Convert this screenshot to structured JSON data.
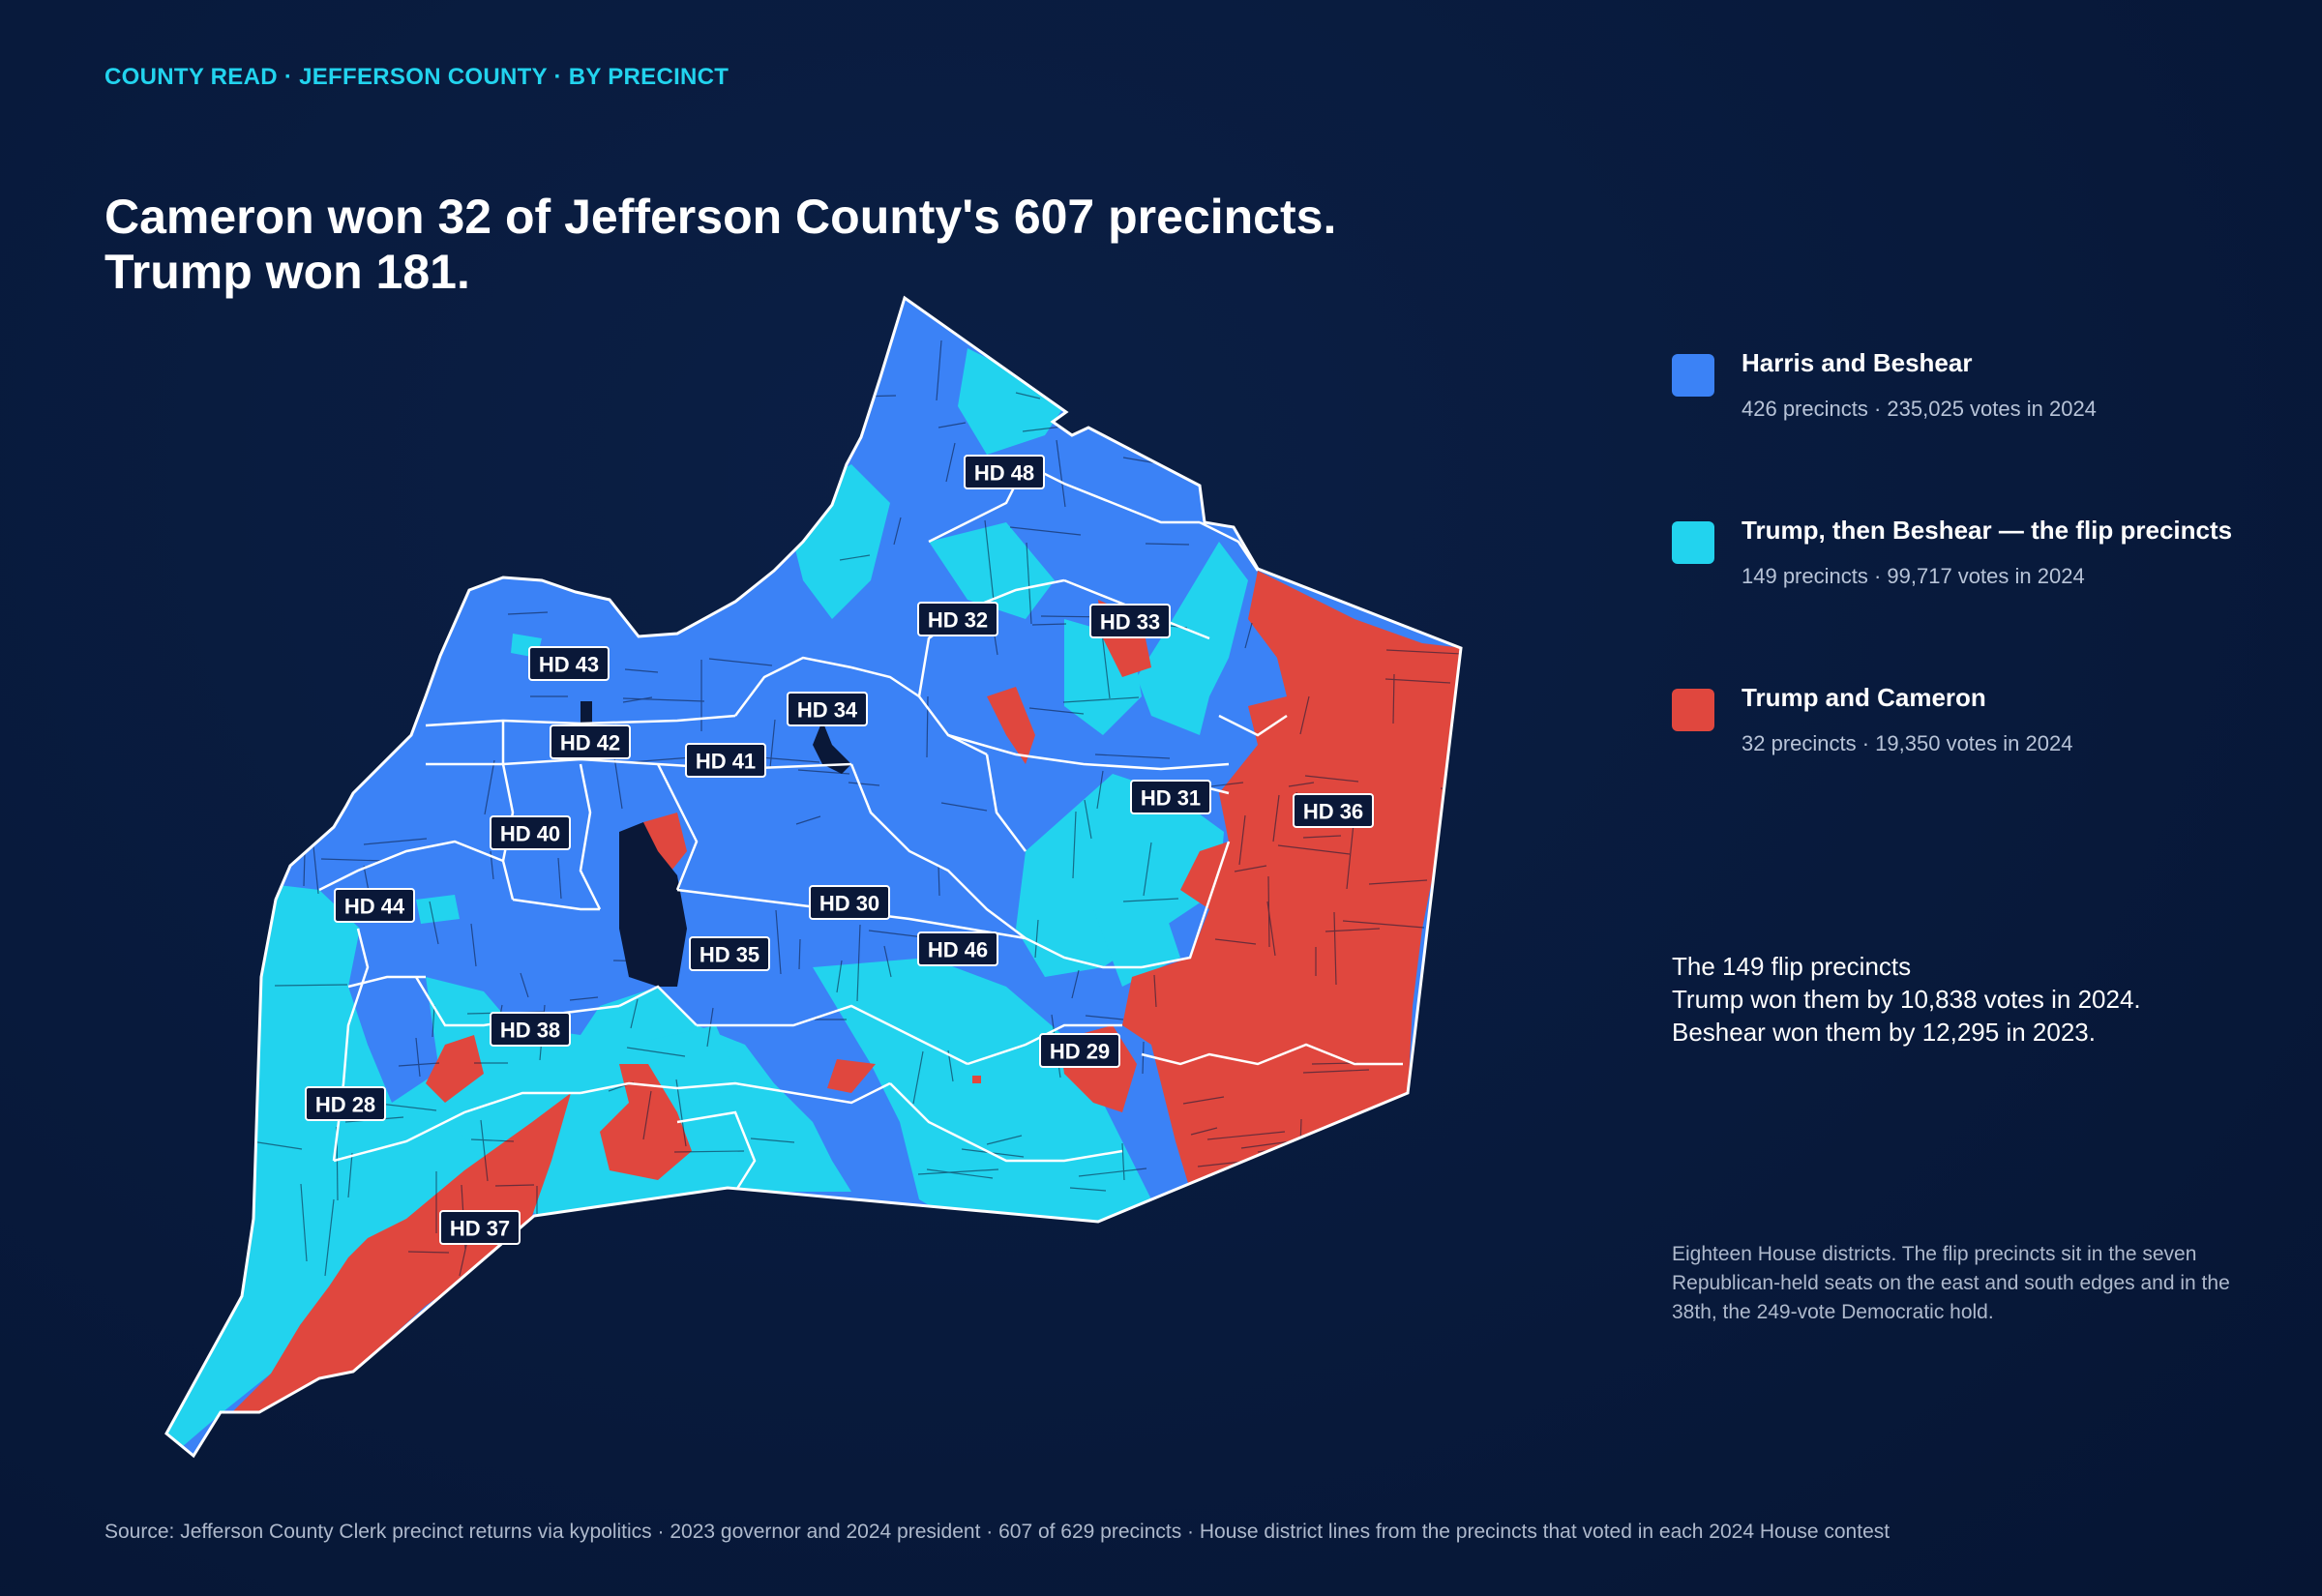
{
  "kicker": "COUNTY READ · JEFFERSON COUNTY · BY PRECINCT",
  "headline": {
    "line1": "Cameron won 32 of Jefferson County's 607 precincts.",
    "line2": "Trump won 181."
  },
  "colors": {
    "background": "#081a3c",
    "harris_beshear": "#3b82f6",
    "flip": "#22d3ee",
    "trump_cameron": "#e0473e",
    "outside": "#0a1838",
    "kicker": "#22d3ee"
  },
  "legend": [
    {
      "key": "harris_beshear",
      "title": "Harris and Beshear",
      "detail": "426 precincts · 235,025 votes in 2024"
    },
    {
      "key": "flip",
      "title": "Trump, then Beshear — the flip precincts",
      "detail": "149 precincts · 99,717 votes in 2024"
    },
    {
      "key": "trump_cameron",
      "title": "Trump and Cameron",
      "detail": "32 precincts · 19,350 votes in 2024"
    }
  ],
  "callout": {
    "title": "The 149 flip precincts",
    "line1": "Trump won them by 10,838 votes in 2024.",
    "line2": "Beshear won them by 12,295 in 2023."
  },
  "note": "Eighteen House districts. The flip precincts sit in the seven Republican-held seats on the east and south edges and in the 38th, the 249-vote Democratic hold.",
  "source": "Source: Jefferson County Clerk precinct returns via kypolitics · 2023 governor and 2024 president · 607 of 629 precincts · House district lines from the precincts that voted in each 2024 House contest",
  "districts": [
    "HD 48",
    "HD 32",
    "HD 33",
    "HD 43",
    "HD 34",
    "HD 42",
    "HD 41",
    "HD 31",
    "HD 36",
    "HD 40",
    "HD 44",
    "HD 30",
    "HD 35",
    "HD 46",
    "HD 38",
    "HD 29",
    "HD 28",
    "HD 37"
  ]
}
